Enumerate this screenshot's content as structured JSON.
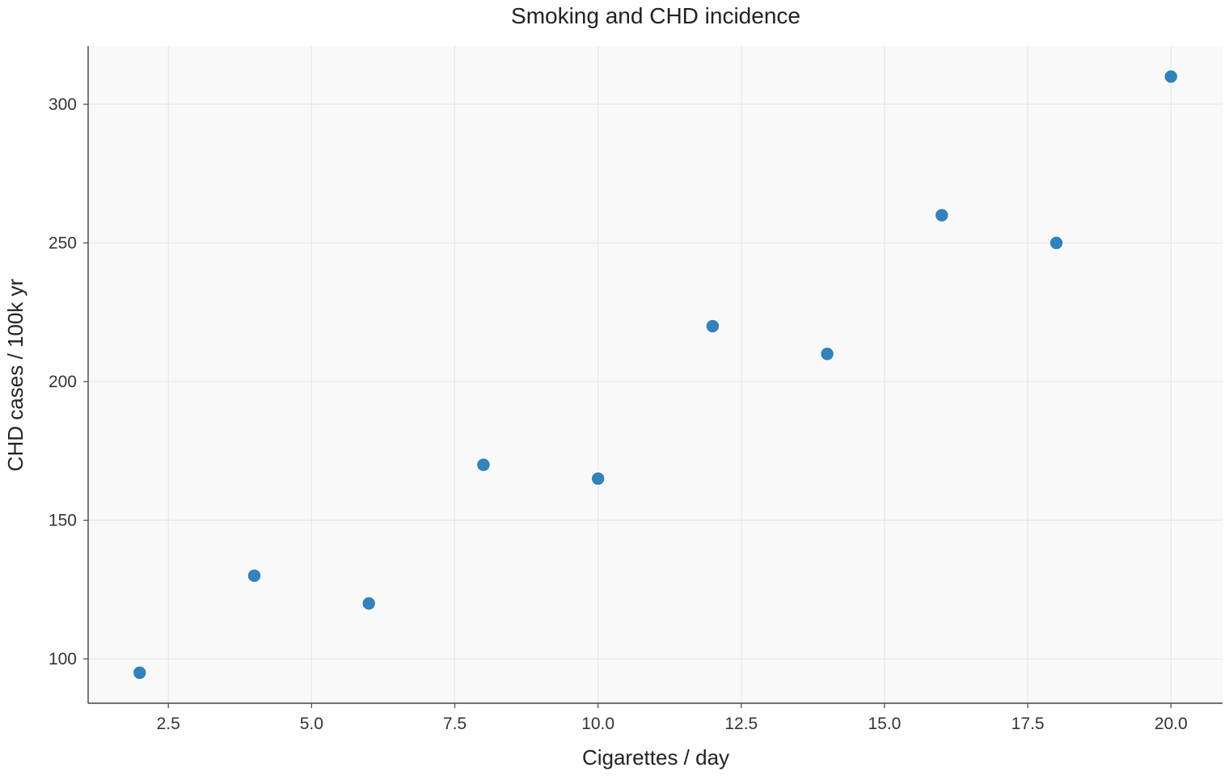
{
  "chart_data": {
    "type": "scatter",
    "title": "Smoking and CHD incidence",
    "xlabel": "Cigarettes / day",
    "ylabel": "CHD cases / 100k yr",
    "xlim": [
      1.1,
      20.9
    ],
    "ylim": [
      84,
      321
    ],
    "x_ticks": [
      2.5,
      5.0,
      7.5,
      10.0,
      12.5,
      15.0,
      17.5,
      20.0
    ],
    "x_tick_labels": [
      "2.5",
      "5.0",
      "7.5",
      "10.0",
      "12.5",
      "15.0",
      "17.5",
      "20.0"
    ],
    "y_ticks": [
      100,
      150,
      200,
      250,
      300
    ],
    "y_tick_labels": [
      "100",
      "150",
      "200",
      "250",
      "300"
    ],
    "grid": true,
    "point_color": "#3182bd",
    "points": [
      {
        "x": 2,
        "y": 95
      },
      {
        "x": 4,
        "y": 130
      },
      {
        "x": 6,
        "y": 120
      },
      {
        "x": 8,
        "y": 170
      },
      {
        "x": 10,
        "y": 165
      },
      {
        "x": 12,
        "y": 220
      },
      {
        "x": 14,
        "y": 210
      },
      {
        "x": 16,
        "y": 260
      },
      {
        "x": 18,
        "y": 250
      },
      {
        "x": 20,
        "y": 310
      }
    ]
  }
}
